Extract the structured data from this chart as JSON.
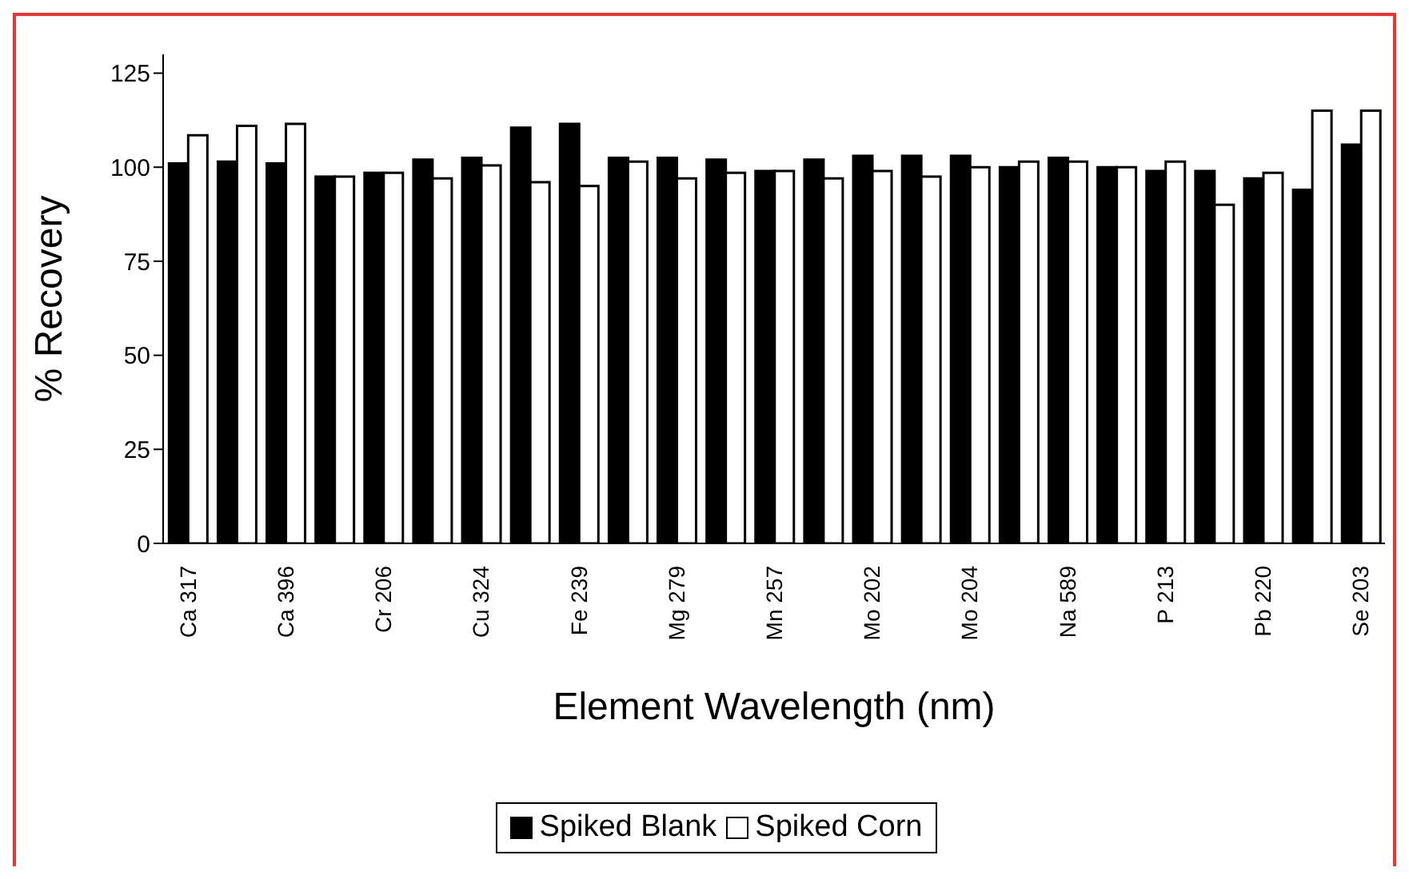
{
  "chart_data": {
    "type": "bar",
    "xlabel": "Element Wavelength (nm)",
    "ylabel": "% Recovery",
    "categories": [
      "Ca 317",
      null,
      "Ca 396",
      null,
      "Cr 206",
      null,
      "Cu 324",
      null,
      "Fe 239",
      null,
      "Mg 279",
      null,
      "Mn 257",
      null,
      "Mo 202",
      null,
      "Mo 204",
      null,
      "Na 589",
      null,
      "P  213",
      null,
      "Pb 220",
      null,
      "Se 203"
    ],
    "series": [
      {
        "name": "Spiked Blank",
        "color": "#000000",
        "values": [
          101,
          101.5,
          101,
          97.5,
          98.5,
          102,
          102.5,
          110.5,
          111.5,
          102.5,
          102.5,
          102,
          99,
          102,
          103,
          103,
          103,
          100,
          102.5,
          100,
          99,
          99,
          97,
          94,
          106
        ]
      },
      {
        "name": "Spiked Corn",
        "color": "#ffffff",
        "values": [
          108.5,
          111,
          111.5,
          97.5,
          98.5,
          97,
          100.5,
          96,
          95,
          101.5,
          97,
          98.5,
          99,
          97,
          99,
          97.5,
          100,
          101.5,
          101.5,
          100,
          101.5,
          90,
          98.5,
          115,
          115
        ]
      }
    ],
    "ylim": [
      0,
      130
    ],
    "yticks": [
      0,
      25,
      50,
      75,
      100,
      125
    ],
    "legend": "bottom"
  }
}
